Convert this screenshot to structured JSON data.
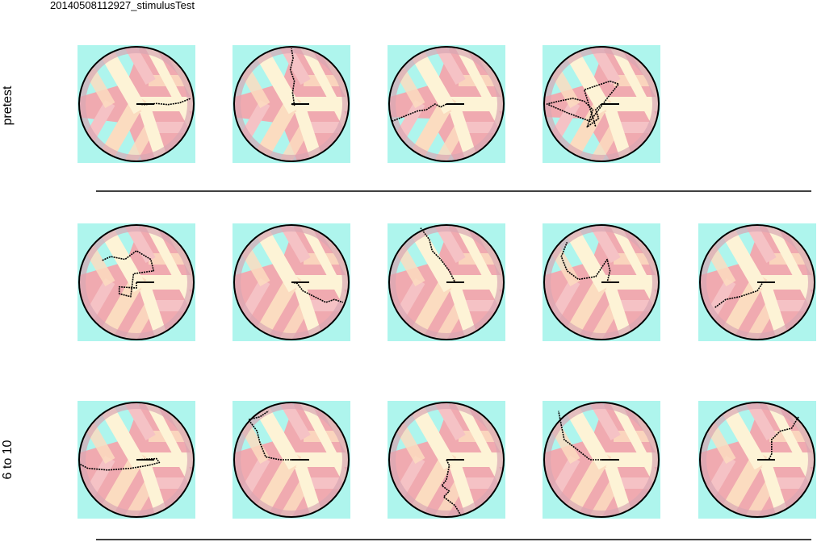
{
  "figure_title": "20140508112927_stimulusTest",
  "row_labels": [
    "pretest",
    "",
    "6 to 10"
  ],
  "rows": [
    {
      "panels": [
        {
          "scheme": "cyan-top-bottom",
          "trajectory": [
            [
              0,
              0
            ],
            [
              0.15,
              0.01
            ],
            [
              0.35,
              -0.01
            ],
            [
              0.55,
              0.01
            ],
            [
              0.75,
              -0.02
            ],
            [
              0.95,
              -0.1
            ]
          ]
        },
        {
          "scheme": "cyan-top-bottom",
          "trajectory": [
            [
              0,
              0
            ],
            [
              0.05,
              0.02
            ],
            [
              0.02,
              -0.2
            ],
            [
              0.05,
              -0.4
            ],
            [
              -0.02,
              -0.6
            ],
            [
              0.03,
              -0.8
            ],
            [
              0.0,
              -0.97
            ]
          ]
        },
        {
          "scheme": "cyan-right",
          "trajectory": [
            [
              0,
              0
            ],
            [
              -0.1,
              0.05
            ],
            [
              -0.2,
              0.0
            ],
            [
              -0.35,
              0.1
            ],
            [
              -0.5,
              0.12
            ],
            [
              -0.7,
              0.2
            ],
            [
              -0.95,
              0.3
            ]
          ]
        },
        {
          "scheme": "cyan-right",
          "trajectory": [
            [
              0,
              0
            ],
            [
              -0.1,
              0.1
            ],
            [
              -0.05,
              0.25
            ],
            [
              -0.25,
              0.4
            ],
            [
              -0.15,
              0.1
            ],
            [
              -0.3,
              -0.05
            ],
            [
              -0.5,
              -0.1
            ],
            [
              -0.75,
              -0.05
            ],
            [
              -0.95,
              0.0
            ],
            [
              -0.6,
              0.15
            ],
            [
              -0.2,
              0.3
            ],
            [
              0.1,
              -0.1
            ],
            [
              0.3,
              -0.35
            ],
            [
              0.15,
              -0.4
            ],
            [
              -0.3,
              -0.25
            ],
            [
              -0.1,
              0.4
            ]
          ]
        }
      ]
    },
    {
      "panels": [
        {
          "scheme": "cyan-top-left",
          "trajectory": [
            [
              0,
              0
            ],
            [
              0,
              0.1
            ],
            [
              -0.3,
              0.08
            ],
            [
              -0.3,
              0.2
            ],
            [
              -0.1,
              0.25
            ],
            [
              -0.05,
              -0.15
            ],
            [
              0.3,
              -0.2
            ],
            [
              0.25,
              -0.4
            ],
            [
              0.0,
              -0.55
            ],
            [
              -0.2,
              -0.4
            ],
            [
              -0.45,
              -0.45
            ],
            [
              -0.6,
              -0.38
            ]
          ]
        },
        {
          "scheme": "cyan-top-left",
          "trajectory": [
            [
              0,
              0
            ],
            [
              0.1,
              0.02
            ],
            [
              0.2,
              0.15
            ],
            [
              0.4,
              0.25
            ],
            [
              0.6,
              0.35
            ],
            [
              0.75,
              0.3
            ],
            [
              0.9,
              0.35
            ]
          ]
        },
        {
          "scheme": "cyan-top-left",
          "trajectory": [
            [
              0,
              0
            ],
            [
              0.15,
              0.0
            ],
            [
              0.05,
              -0.2
            ],
            [
              -0.1,
              -0.4
            ],
            [
              -0.25,
              -0.55
            ],
            [
              -0.3,
              -0.75
            ],
            [
              -0.45,
              -0.95
            ]
          ]
        },
        {
          "scheme": "cyan-top-left",
          "trajectory": [
            [
              0,
              0
            ],
            [
              0.1,
              0.0
            ],
            [
              0.15,
              -0.2
            ],
            [
              0.1,
              -0.4
            ],
            [
              -0.1,
              -0.1
            ],
            [
              -0.4,
              -0.05
            ],
            [
              -0.6,
              -0.2
            ],
            [
              -0.7,
              -0.45
            ],
            [
              -0.6,
              -0.7
            ]
          ]
        },
        {
          "scheme": "cyan-top-left",
          "trajectory": [
            [
              0,
              0
            ],
            [
              0.1,
              0.0
            ],
            [
              0.0,
              0.15
            ],
            [
              -0.3,
              0.25
            ],
            [
              -0.55,
              0.3
            ],
            [
              -0.75,
              0.45
            ]
          ]
        }
      ]
    },
    {
      "panels": [
        {
          "scheme": "cyan-top-left",
          "trajectory": [
            [
              0,
              0
            ],
            [
              0.35,
              -0.02
            ],
            [
              0.4,
              0.05
            ],
            [
              0.2,
              0.1
            ],
            [
              -0.1,
              0.15
            ],
            [
              -0.5,
              0.18
            ],
            [
              -0.85,
              0.15
            ],
            [
              -0.98,
              0.08
            ]
          ]
        },
        {
          "scheme": "cyan-top-left",
          "trajectory": [
            [
              0,
              0
            ],
            [
              -0.2,
              0.0
            ],
            [
              -0.45,
              -0.05
            ],
            [
              -0.55,
              -0.3
            ],
            [
              -0.6,
              -0.5
            ],
            [
              -0.75,
              -0.7
            ],
            [
              -0.55,
              -0.75
            ],
            [
              -0.4,
              -0.85
            ]
          ]
        },
        {
          "scheme": "cyan-top-left",
          "trajectory": [
            [
              0,
              0
            ],
            [
              0.05,
              0.1
            ],
            [
              0.0,
              0.35
            ],
            [
              -0.08,
              0.45
            ],
            [
              0.05,
              0.55
            ],
            [
              -0.05,
              0.65
            ],
            [
              0.15,
              0.8
            ],
            [
              0.25,
              0.97
            ]
          ]
        },
        {
          "scheme": "cyan-top-left",
          "trajectory": [
            [
              0,
              0
            ],
            [
              -0.2,
              0.0
            ],
            [
              -0.45,
              -0.2
            ],
            [
              -0.65,
              -0.35
            ],
            [
              -0.7,
              -0.6
            ],
            [
              -0.75,
              -0.85
            ]
          ]
        },
        {
          "scheme": "cyan-top-left",
          "trajectory": [
            [
              0,
              0
            ],
            [
              0.2,
              0.0
            ],
            [
              0.25,
              -0.1
            ],
            [
              0.25,
              -0.35
            ],
            [
              0.4,
              -0.5
            ],
            [
              0.6,
              -0.55
            ],
            [
              0.72,
              -0.75
            ]
          ]
        }
      ]
    }
  ],
  "colors": {
    "cyan": "#aef5ed",
    "pink": "#f0aab0",
    "light_pink": "#f5c2c5",
    "cream": "#fdf3d6",
    "peach": "#fbdcc0",
    "rim": "#d8a6b4",
    "outline": "#000000",
    "trajectory": "#000000",
    "separator": "#000000"
  },
  "separators_after_rows": [
    0,
    2
  ]
}
